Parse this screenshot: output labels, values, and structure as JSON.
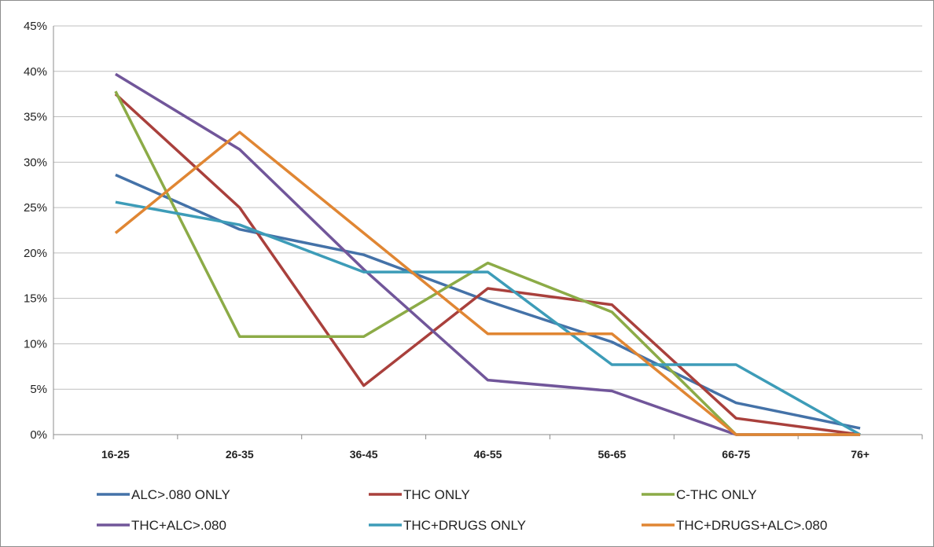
{
  "chart_data": {
    "type": "line",
    "title": "",
    "xlabel": "",
    "ylabel": "",
    "categories": [
      "16-25",
      "26-35",
      "36-45",
      "46-55",
      "56-65",
      "66-75",
      "76+"
    ],
    "y_ticks": [
      "0%",
      "5%",
      "10%",
      "15%",
      "20%",
      "25%",
      "30%",
      "35%",
      "40%",
      "45%"
    ],
    "ylim": [
      0,
      45
    ],
    "grid": true,
    "legend_position": "bottom",
    "series": [
      {
        "name": "ALC>.080 ONLY",
        "color": "#4472a8",
        "values": [
          28.6,
          22.6,
          19.8,
          14.7,
          10.2,
          3.5,
          0.7
        ]
      },
      {
        "name": "THC ONLY",
        "color": "#a9403c",
        "values": [
          37.5,
          25.0,
          5.4,
          16.1,
          14.3,
          1.8,
          0.0
        ]
      },
      {
        "name": "C-THC ONLY",
        "color": "#8cab47",
        "values": [
          37.8,
          10.8,
          10.8,
          18.9,
          13.5,
          0.0,
          0.0
        ]
      },
      {
        "name": "THC+ALC>.080",
        "color": "#71569a",
        "values": [
          39.7,
          31.4,
          18.2,
          6.0,
          4.8,
          0.0,
          0.0
        ]
      },
      {
        "name": "THC+DRUGS ONLY",
        "color": "#3d9cb8",
        "values": [
          25.6,
          23.1,
          17.9,
          17.9,
          7.7,
          7.7,
          0.0
        ]
      },
      {
        "name": "THC+DRUGS+ALC>.080",
        "color": "#e08633",
        "values": [
          22.2,
          33.3,
          22.2,
          11.1,
          11.1,
          0.0,
          0.0
        ]
      }
    ]
  }
}
